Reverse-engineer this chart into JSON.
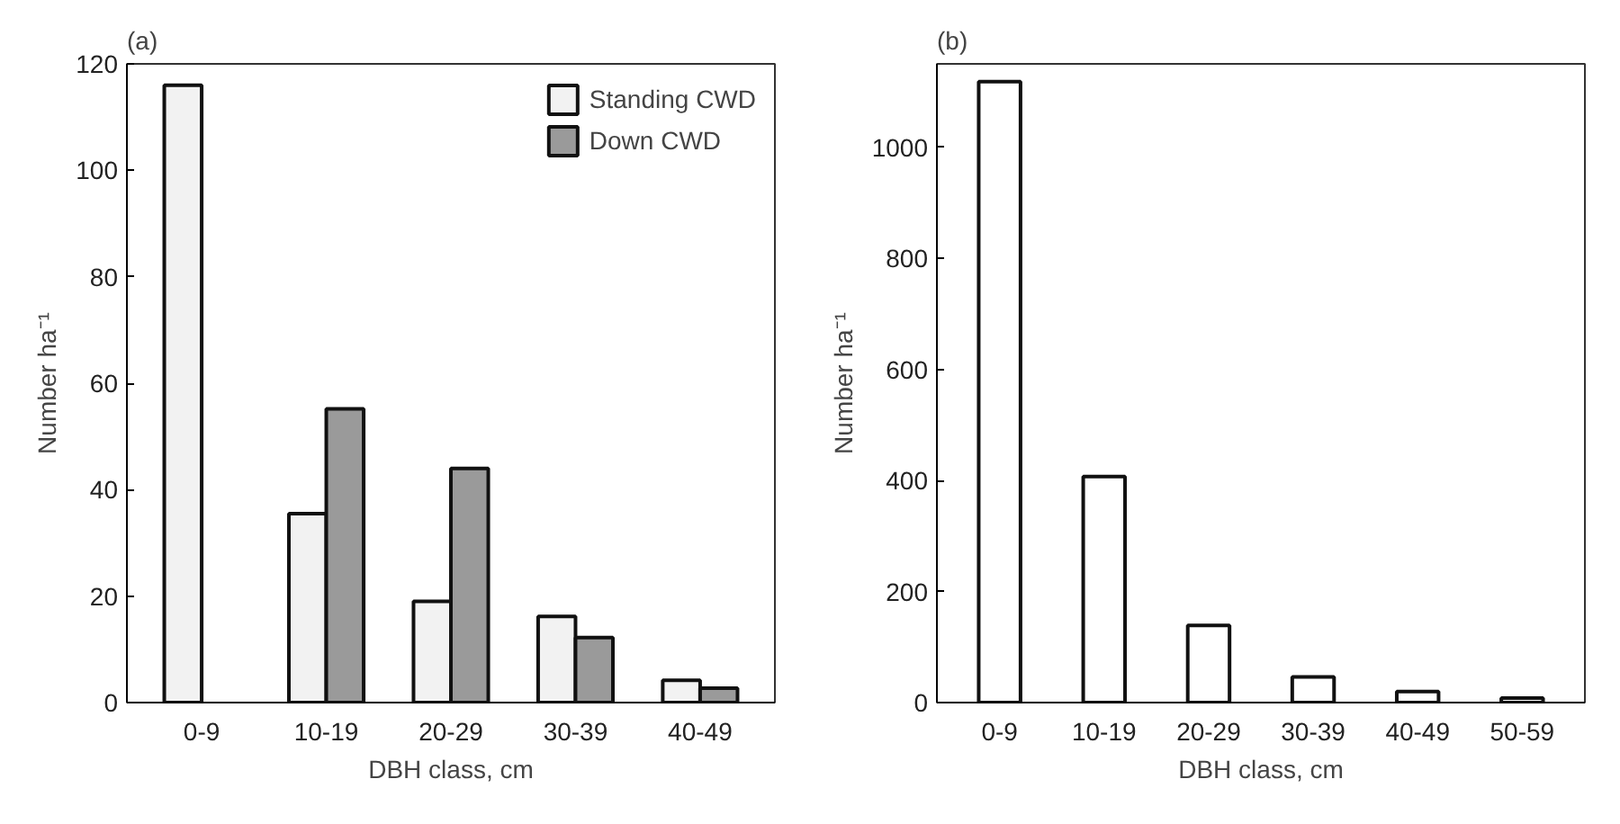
{
  "chart_data": [
    {
      "type": "bar",
      "title": "(a)",
      "xlabel": "DBH class, cm",
      "ylabel": "Number ha⁻¹",
      "categories": [
        "0-9",
        "10-19",
        "20-29",
        "30-39",
        "40-49"
      ],
      "series": [
        {
          "name": "Standing CWD",
          "color": "#f2f2f2",
          "values": [
            116,
            35.5,
            19,
            16.2,
            4.2
          ]
        },
        {
          "name": "Down CWD",
          "color": "#9a9a9a",
          "values": [
            null,
            55.2,
            44,
            12.2,
            2.7
          ]
        }
      ],
      "ylim": [
        0,
        120
      ],
      "yticks": [
        0,
        20,
        40,
        60,
        80,
        100,
        120
      ],
      "grid": false,
      "legend": "top right"
    },
    {
      "type": "bar",
      "title": "(b)",
      "xlabel": "DBH class, cm",
      "ylabel": "Number ha⁻¹",
      "categories": [
        "0-9",
        "10-19",
        "20-29",
        "30-39",
        "40-49",
        "50-59"
      ],
      "series": [
        {
          "color": "#ffffff",
          "values": [
            1118,
            407,
            139,
            46,
            20,
            8
          ]
        }
      ],
      "ylim": [
        0,
        1150
      ],
      "yticks": [
        0,
        200,
        400,
        600,
        800,
        1000
      ],
      "grid": false
    }
  ]
}
